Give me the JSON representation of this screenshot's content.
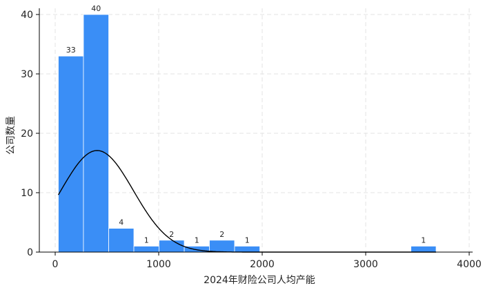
{
  "chart_data": {
    "type": "bar",
    "subtype": "histogram",
    "title": "",
    "xlabel": "2024年财险公司人均产能",
    "ylabel": "公司数量",
    "xlim": [
      0,
      4000
    ],
    "ylim": [
      0,
      42
    ],
    "xticks": [
      0,
      1000,
      2000,
      3000,
      4000
    ],
    "yticks": [
      0,
      10,
      20,
      30,
      40
    ],
    "grid": true,
    "colors": {
      "bar": "#3a8ef6",
      "bar_edge": "#ffffff",
      "curve": "#000000",
      "grid": "#e3e3e3"
    },
    "bins": [
      {
        "x0": 30,
        "x1": 273,
        "count": 33
      },
      {
        "x0": 273,
        "x1": 517,
        "count": 40
      },
      {
        "x0": 517,
        "x1": 760,
        "count": 4
      },
      {
        "x0": 760,
        "x1": 1003,
        "count": 1
      },
      {
        "x0": 1003,
        "x1": 1247,
        "count": 2
      },
      {
        "x0": 1247,
        "x1": 1490,
        "count": 1
      },
      {
        "x0": 1490,
        "x1": 1733,
        "count": 2
      },
      {
        "x0": 1733,
        "x1": 1977,
        "count": 1
      },
      {
        "x0": 3437,
        "x1": 3680,
        "count": 1
      }
    ],
    "normal_curve": {
      "mean": 405,
      "sd": 350,
      "peak": 17.1,
      "x_from": 30,
      "x_to": 3680
    }
  }
}
